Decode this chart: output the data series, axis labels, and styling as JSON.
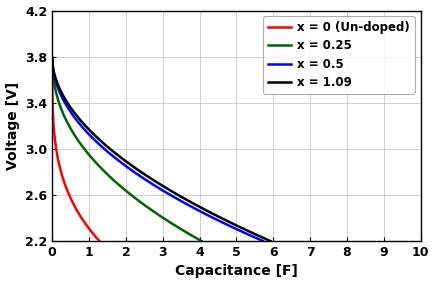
{
  "title": "",
  "xlabel": "Capacitance [F]",
  "ylabel": "Voltage [V]",
  "xlim": [
    0,
    10
  ],
  "ylim": [
    2.2,
    4.2
  ],
  "xticks": [
    0,
    1,
    2,
    3,
    4,
    5,
    6,
    7,
    8,
    9,
    10
  ],
  "yticks": [
    2.2,
    2.6,
    3.0,
    3.4,
    3.8,
    4.2
  ],
  "curves": [
    {
      "label": "x = 0 (Un-doped)",
      "color": "#ff0000",
      "x_end": 1.28,
      "v_start": 3.775,
      "v_end": 2.2,
      "alpha": 3.5
    },
    {
      "label": "x = 0.25",
      "color": "#006400",
      "x_end": 4.05,
      "v_start": 3.79,
      "v_end": 2.2,
      "alpha": 2.2
    },
    {
      "label": "x = 0.5",
      "color": "#0000ff",
      "x_end": 5.72,
      "v_start": 3.79,
      "v_end": 2.2,
      "alpha": 2.0
    },
    {
      "label": "x = 1.09",
      "color": "#000000",
      "x_end": 5.92,
      "v_start": 3.79,
      "v_end": 2.2,
      "alpha": 1.9
    }
  ],
  "legend_loc": "upper right",
  "background_color": "#ffffff",
  "grid_color": "#c8c8c8",
  "linewidth": 1.8,
  "legend_fontsize": 8.5,
  "axis_fontsize": 10,
  "tick_fontsize": 9
}
